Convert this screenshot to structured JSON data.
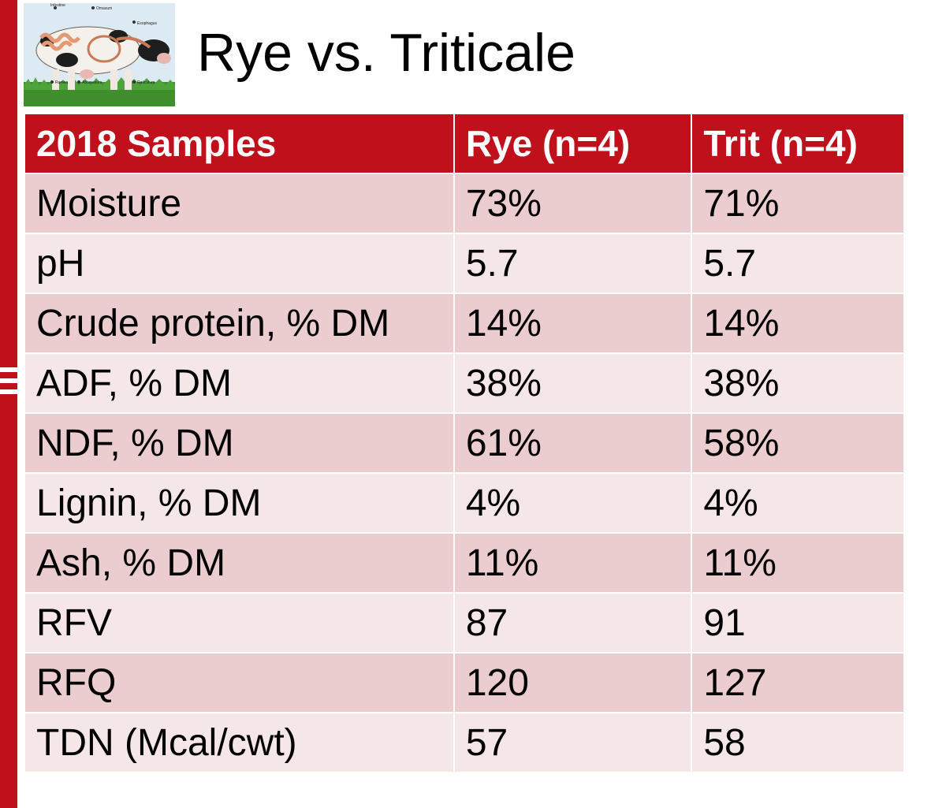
{
  "title": "Rye vs. Triticale",
  "illustration": {
    "icon": "cow-digestive-system-illustration",
    "labels": [
      "Intestine",
      "Omasum",
      "Esophagus",
      "Rumen",
      "Abomasum",
      "Reticulum"
    ]
  },
  "colors": {
    "accent": "#c0101c",
    "row_dark": "#ebcccf",
    "row_light": "#f5e6e7"
  },
  "table": {
    "headers": [
      "2018 Samples",
      "Rye (n=4)",
      "Trit (n=4)"
    ],
    "rows": [
      [
        "Moisture",
        "73%",
        "71%"
      ],
      [
        "pH",
        "5.7",
        "5.7"
      ],
      [
        "Crude protein, % DM",
        "14%",
        "14%"
      ],
      [
        "ADF, % DM",
        "38%",
        "38%"
      ],
      [
        "NDF, % DM",
        "61%",
        "58%"
      ],
      [
        "Lignin, % DM",
        "4%",
        "4%"
      ],
      [
        "Ash, % DM",
        "11%",
        "11%"
      ],
      [
        "RFV",
        "87",
        "91"
      ],
      [
        "RFQ",
        "120",
        "127"
      ],
      [
        "TDN (Mcal/cwt)",
        "57",
        "58"
      ]
    ]
  }
}
